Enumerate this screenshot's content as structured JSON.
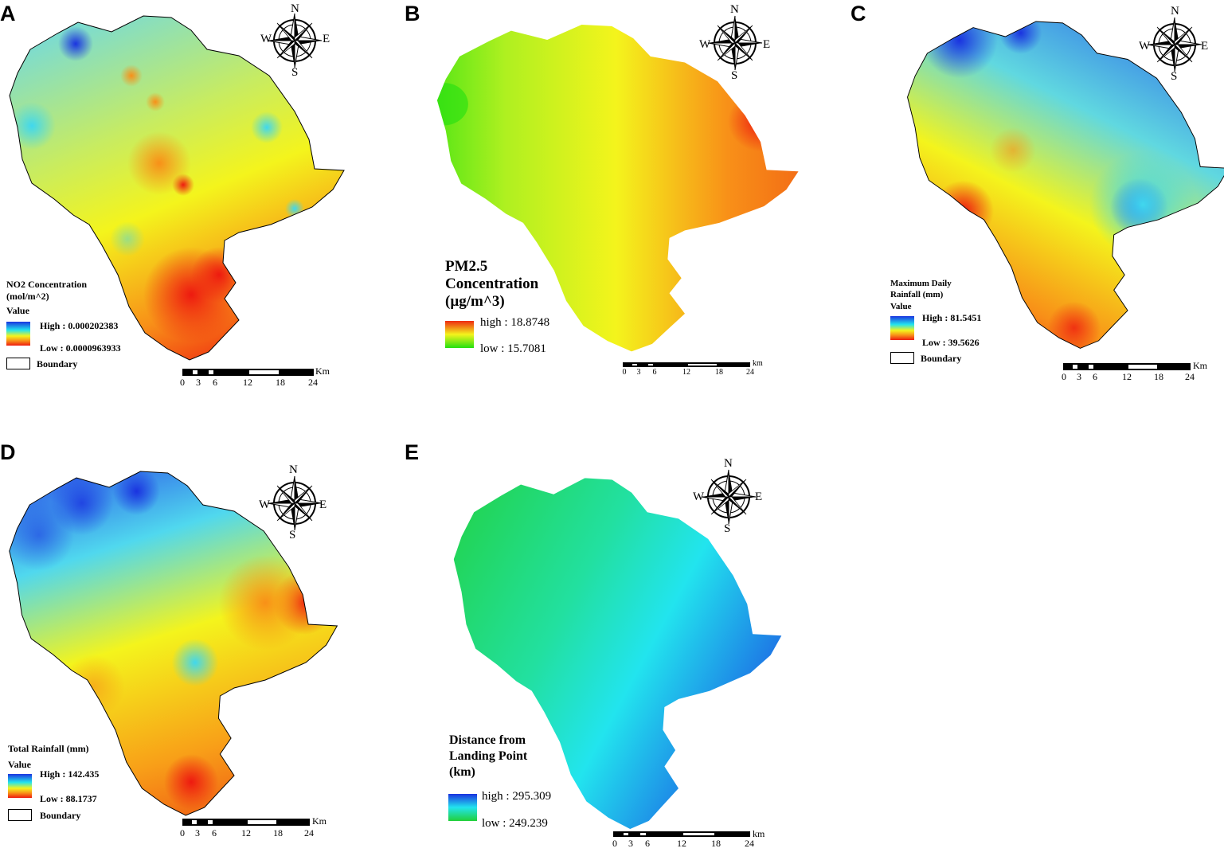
{
  "panels": [
    {
      "letter": "A",
      "legend": {
        "title": "NO2 Concentration\n(mol/m^2)",
        "value_label": "Value",
        "high": "High : 0.000202383",
        "low": "Low : 0.0000963933",
        "boundary": "Boundary"
      },
      "scale": {
        "unit": "Km",
        "ticks": [
          "0",
          "3",
          "6",
          "12",
          "18",
          "24"
        ]
      },
      "compass": {
        "n": "N",
        "s": "S",
        "e": "E",
        "w": "W"
      }
    },
    {
      "letter": "B",
      "legend": {
        "title": "PM2.5\nConcentration\n(µg/m^3)",
        "high": "high : 18.8748",
        "low": "low : 15.7081"
      },
      "scale": {
        "unit": "km",
        "ticks": [
          "0",
          "3",
          "6",
          "12",
          "18",
          "24"
        ]
      },
      "compass": {
        "n": "N",
        "s": "S",
        "e": "E",
        "w": "W"
      }
    },
    {
      "letter": "C",
      "legend": {
        "title": "Maximum Daily\nRainfall (mm)",
        "value_label": "Value",
        "high": "High : 81.5451",
        "low": "Low : 39.5626",
        "boundary": "Boundary"
      },
      "scale": {
        "unit": "Km",
        "ticks": [
          "0",
          "3",
          "6",
          "12",
          "18",
          "24"
        ]
      },
      "compass": {
        "n": "N",
        "s": "S",
        "e": "E",
        "w": "W"
      }
    },
    {
      "letter": "D",
      "legend": {
        "title": "Total Rainfall (mm)",
        "value_label": "Value",
        "high": "High : 142.435",
        "low": "Low : 88.1737",
        "boundary": "Boundary"
      },
      "scale": {
        "unit": "Km",
        "ticks": [
          "0",
          "3",
          "6",
          "12",
          "18",
          "24"
        ]
      },
      "compass": {
        "n": "N",
        "s": "S",
        "e": "E",
        "w": "W"
      }
    },
    {
      "letter": "E",
      "legend": {
        "title": "Distance from\nLanding Point\n(km)",
        "high": "high : 295.309",
        "low": "low : 249.239"
      },
      "scale": {
        "unit": "km",
        "ticks": [
          "0",
          "3",
          "6",
          "12",
          "18",
          "24"
        ]
      },
      "compass": {
        "n": "N",
        "s": "S",
        "e": "E",
        "w": "W"
      }
    }
  ],
  "colors": {
    "high_blue": "#1a33e0",
    "cyan": "#22e4ee",
    "yellow": "#f4f41c",
    "orange": "#f89018",
    "low_red": "#ee1a10",
    "green": "#22d038"
  }
}
